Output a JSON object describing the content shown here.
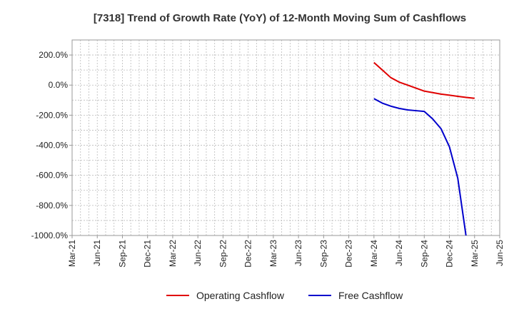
{
  "chart_data": {
    "type": "line",
    "title": "[7318]  Trend of Growth Rate (YoY) of 12-Month Moving Sum of Cashflows",
    "xlabel": "",
    "ylabel": "",
    "ylim": [
      -1000,
      300
    ],
    "y_ticks": [
      200,
      0,
      -200,
      -400,
      -600,
      -800,
      -1000
    ],
    "y_tick_labels": [
      "200.0%",
      "0.0%",
      "-200.0%",
      "-400.0%",
      "-600.0%",
      "-800.0%",
      "-1000.0%"
    ],
    "x_tick_labels": [
      "Mar-21",
      "Jun-21",
      "Sep-21",
      "Dec-21",
      "Mar-22",
      "Jun-22",
      "Sep-22",
      "Dec-22",
      "Mar-23",
      "Jun-23",
      "Sep-23",
      "Dec-23",
      "Mar-24",
      "Jun-24",
      "Sep-24",
      "Dec-24",
      "Mar-25",
      "Jun-25"
    ],
    "x_range": [
      "2021-03",
      "2025-06"
    ],
    "grid": true,
    "legend_position": "bottom",
    "series": [
      {
        "name": "Operating Cashflow",
        "color": "#e00000",
        "x": [
          "2024-03",
          "2024-04",
          "2024-05",
          "2024-06",
          "2024-07",
          "2024-08",
          "2024-09",
          "2024-10",
          "2024-11",
          "2024-12",
          "2025-01",
          "2025-02",
          "2025-03"
        ],
        "values": [
          150,
          100,
          50,
          20,
          0,
          -20,
          -40,
          -50,
          -60,
          -67,
          -75,
          -82,
          -88
        ]
      },
      {
        "name": "Free Cashflow",
        "color": "#0000cc",
        "x": [
          "2024-03",
          "2024-04",
          "2024-05",
          "2024-06",
          "2024-07",
          "2024-08",
          "2024-09",
          "2024-10",
          "2024-11",
          "2024-12",
          "2025-01",
          "2025-02"
        ],
        "values": [
          -90,
          -120,
          -140,
          -155,
          -165,
          -170,
          -175,
          -225,
          -290,
          -410,
          -620,
          -1010
        ]
      }
    ]
  }
}
